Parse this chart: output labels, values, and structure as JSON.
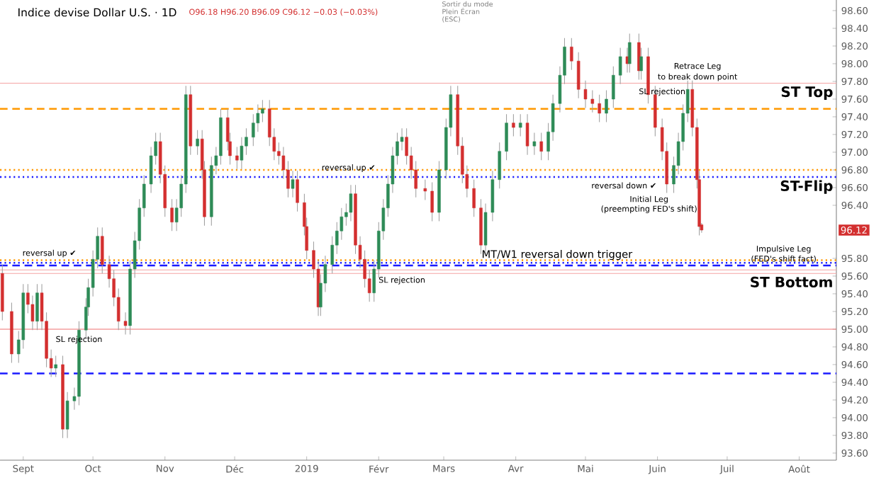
{
  "chart_data": {
    "type": "candlestick",
    "title": "Indice devise Dollar U.S. · 1D",
    "subtitle": "O96.18 H96.20 B96.09 C96.12 −0.03 (−0.03%)",
    "x": [
      "2018-08-23",
      "2018-08-27",
      "2018-08-30",
      "2018-09-01",
      "2018-09-03",
      "2018-09-05",
      "2018-09-07",
      "2018-09-09",
      "2018-09-11",
      "2018-09-13",
      "2018-09-15",
      "2018-09-18",
      "2018-09-20",
      "2018-09-23",
      "2018-09-25",
      "2018-09-28",
      "2018-09-29",
      "2018-10-01",
      "2018-10-03",
      "2018-10-05",
      "2018-10-08",
      "2018-10-10",
      "2018-10-12",
      "2018-10-15",
      "2018-10-17",
      "2018-10-19",
      "2018-10-21",
      "2018-10-23",
      "2018-10-26",
      "2018-10-28",
      "2018-10-30",
      "2018-11-01",
      "2018-11-04",
      "2018-11-06",
      "2018-11-08",
      "2018-11-10",
      "2018-11-12",
      "2018-11-15",
      "2018-11-17",
      "2018-11-18",
      "2018-11-21",
      "2018-11-23",
      "2018-11-25",
      "2018-11-28",
      "2018-11-29",
      "2018-12-02",
      "2018-12-04",
      "2018-12-06",
      "2018-12-09",
      "2018-12-11",
      "2018-12-13",
      "2018-12-16",
      "2018-12-18",
      "2018-12-20",
      "2018-12-22",
      "2018-12-24",
      "2018-12-26",
      "2018-12-28",
      "2018-12-31",
      "2019-01-01",
      "2019-01-04",
      "2019-01-06",
      "2019-01-07",
      "2019-01-09",
      "2019-01-12",
      "2019-01-14",
      "2019-01-16",
      "2019-01-18",
      "2019-01-20",
      "2019-01-22",
      "2019-01-24",
      "2019-01-26",
      "2019-01-28",
      "2019-01-30",
      "2019-02-01",
      "2019-02-03",
      "2019-02-05",
      "2019-02-07",
      "2019-02-09",
      "2019-02-11",
      "2019-02-13",
      "2019-02-15",
      "2019-02-17",
      "2019-02-21",
      "2019-02-24",
      "2019-02-27",
      "2019-03-02",
      "2019-03-04",
      "2019-03-07",
      "2019-03-09",
      "2019-03-11",
      "2019-03-14",
      "2019-03-17",
      "2019-03-19",
      "2019-03-22",
      "2019-03-25",
      "2019-03-28",
      "2019-03-31",
      "2019-04-03",
      "2019-04-06",
      "2019-04-09",
      "2019-04-12",
      "2019-04-15",
      "2019-04-17",
      "2019-04-20",
      "2019-04-22",
      "2019-04-25",
      "2019-04-28",
      "2019-05-01",
      "2019-05-04",
      "2019-05-07",
      "2019-05-10",
      "2019-05-13",
      "2019-05-16",
      "2019-05-19",
      "2019-05-20",
      "2019-05-24",
      "2019-05-25",
      "2019-05-28",
      "2019-05-31",
      "2019-06-03",
      "2019-06-05",
      "2019-06-08",
      "2019-06-10",
      "2019-06-12",
      "2019-06-14",
      "2019-06-16",
      "2019-06-18",
      "2019-06-19",
      "2019-06-20"
    ],
    "ohlc": [
      [
        95.63,
        95.73,
        95.1,
        95.2
      ],
      [
        95.2,
        95.3,
        94.62,
        94.72
      ],
      [
        94.72,
        94.98,
        94.62,
        94.88
      ],
      [
        94.88,
        95.51,
        94.78,
        95.41
      ],
      [
        95.41,
        95.51,
        95.18,
        95.28
      ],
      [
        95.28,
        95.38,
        94.99,
        95.09
      ],
      [
        95.09,
        95.51,
        94.99,
        95.41
      ],
      [
        95.41,
        95.51,
        94.99,
        95.09
      ],
      [
        95.09,
        95.19,
        94.57,
        94.67
      ],
      [
        94.67,
        94.77,
        94.46,
        94.56
      ],
      [
        94.56,
        94.7,
        94.46,
        94.6
      ],
      [
        94.6,
        94.7,
        93.77,
        93.87
      ],
      [
        93.87,
        94.29,
        93.77,
        94.19
      ],
      [
        94.19,
        94.34,
        94.09,
        94.24
      ],
      [
        94.24,
        95.09,
        94.14,
        94.99
      ],
      [
        94.99,
        95.35,
        94.89,
        95.25
      ],
      [
        95.25,
        95.57,
        95.15,
        95.47
      ],
      [
        95.47,
        95.89,
        95.37,
        95.79
      ],
      [
        95.79,
        96.15,
        95.69,
        96.05
      ],
      [
        96.05,
        96.15,
        95.63,
        95.73
      ],
      [
        95.73,
        95.83,
        95.47,
        95.57
      ],
      [
        95.57,
        95.67,
        95.26,
        95.36
      ],
      [
        95.36,
        95.46,
        94.99,
        95.09
      ],
      [
        95.09,
        95.19,
        94.94,
        95.04
      ],
      [
        95.04,
        95.78,
        94.94,
        95.68
      ],
      [
        95.68,
        96.1,
        95.58,
        96.0
      ],
      [
        96.0,
        96.47,
        95.9,
        96.37
      ],
      [
        96.37,
        96.74,
        96.27,
        96.64
      ],
      [
        96.64,
        97.06,
        96.54,
        96.96
      ],
      [
        96.96,
        97.22,
        96.86,
        97.12
      ],
      [
        97.12,
        97.22,
        96.65,
        96.75
      ],
      [
        96.75,
        96.85,
        96.27,
        96.37
      ],
      [
        96.37,
        96.47,
        96.11,
        96.21
      ],
      [
        96.21,
        96.47,
        96.11,
        96.37
      ],
      [
        96.37,
        96.74,
        96.27,
        96.64
      ],
      [
        96.64,
        97.75,
        96.54,
        97.65
      ],
      [
        97.65,
        97.75,
        96.97,
        97.07
      ],
      [
        97.07,
        97.25,
        96.97,
        97.15
      ],
      [
        97.15,
        97.25,
        96.7,
        96.8
      ],
      [
        96.8,
        96.9,
        96.17,
        96.27
      ],
      [
        96.27,
        96.95,
        96.17,
        96.85
      ],
      [
        96.85,
        97.06,
        96.75,
        96.96
      ],
      [
        96.96,
        97.49,
        96.86,
        97.39
      ],
      [
        97.39,
        97.49,
        97.02,
        97.12
      ],
      [
        97.12,
        97.22,
        96.86,
        96.96
      ],
      [
        96.96,
        97.06,
        96.81,
        96.91
      ],
      [
        96.91,
        97.17,
        96.81,
        97.07
      ],
      [
        97.07,
        97.27,
        96.97,
        97.17
      ],
      [
        97.17,
        97.43,
        97.07,
        97.33
      ],
      [
        97.33,
        97.54,
        97.23,
        97.44
      ],
      [
        97.44,
        97.59,
        97.34,
        97.49
      ],
      [
        97.49,
        97.59,
        97.07,
        97.17
      ],
      [
        97.17,
        97.27,
        96.91,
        97.01
      ],
      [
        97.01,
        97.11,
        96.86,
        96.96
      ],
      [
        96.96,
        97.06,
        96.7,
        96.8
      ],
      [
        96.8,
        96.9,
        96.49,
        96.59
      ],
      [
        96.59,
        96.79,
        96.49,
        96.69
      ],
      [
        96.69,
        96.79,
        96.33,
        96.43
      ],
      [
        96.43,
        96.53,
        96.06,
        96.16
      ],
      [
        96.16,
        96.26,
        95.79,
        95.89
      ],
      [
        95.89,
        95.99,
        95.58,
        95.68
      ],
      [
        95.68,
        95.78,
        95.15,
        95.25
      ],
      [
        95.25,
        95.62,
        95.15,
        95.52
      ],
      [
        95.52,
        95.83,
        95.42,
        95.73
      ],
      [
        95.73,
        96.05,
        95.63,
        95.95
      ],
      [
        95.95,
        96.21,
        95.85,
        96.11
      ],
      [
        96.11,
        96.37,
        96.01,
        96.27
      ],
      [
        96.27,
        96.42,
        96.17,
        96.32
      ],
      [
        96.32,
        96.63,
        96.22,
        96.53
      ],
      [
        96.53,
        96.63,
        95.85,
        95.95
      ],
      [
        95.95,
        96.05,
        95.69,
        95.79
      ],
      [
        95.79,
        95.89,
        95.47,
        95.57
      ],
      [
        95.57,
        95.67,
        95.31,
        95.41
      ],
      [
        95.41,
        95.78,
        95.31,
        95.68
      ],
      [
        95.68,
        96.21,
        95.58,
        96.11
      ],
      [
        96.11,
        96.47,
        96.01,
        96.37
      ],
      [
        96.37,
        96.74,
        96.27,
        96.64
      ],
      [
        96.64,
        97.06,
        96.54,
        96.96
      ],
      [
        96.96,
        97.22,
        96.86,
        97.12
      ],
      [
        97.12,
        97.27,
        97.02,
        97.17
      ],
      [
        97.17,
        97.27,
        96.86,
        96.96
      ],
      [
        96.96,
        97.06,
        96.7,
        96.8
      ],
      [
        96.8,
        96.9,
        96.49,
        96.59
      ],
      [
        96.59,
        96.69,
        96.46,
        96.56
      ],
      [
        96.56,
        96.66,
        96.22,
        96.32
      ],
      [
        96.32,
        96.9,
        96.22,
        96.8
      ],
      [
        96.8,
        97.38,
        96.7,
        97.28
      ],
      [
        97.28,
        97.75,
        97.18,
        97.65
      ],
      [
        97.65,
        97.75,
        96.97,
        97.07
      ],
      [
        97.07,
        97.17,
        96.65,
        96.75
      ],
      [
        96.75,
        96.85,
        96.49,
        96.59
      ],
      [
        96.59,
        96.69,
        96.27,
        96.37
      ],
      [
        96.37,
        96.47,
        95.85,
        95.95
      ],
      [
        95.95,
        96.42,
        95.85,
        96.32
      ],
      [
        96.32,
        96.79,
        96.22,
        96.69
      ],
      [
        96.69,
        97.11,
        96.59,
        97.01
      ],
      [
        97.01,
        97.43,
        96.91,
        97.33
      ],
      [
        97.33,
        97.43,
        97.18,
        97.28
      ],
      [
        97.28,
        97.43,
        97.18,
        97.33
      ],
      [
        97.33,
        97.43,
        96.97,
        97.07
      ],
      [
        97.07,
        97.22,
        96.97,
        97.12
      ],
      [
        97.12,
        97.22,
        96.91,
        97.01
      ],
      [
        97.01,
        97.33,
        96.91,
        97.23
      ],
      [
        97.23,
        97.65,
        97.13,
        97.55
      ],
      [
        97.55,
        97.97,
        97.45,
        97.87
      ],
      [
        97.87,
        98.29,
        97.77,
        98.19
      ],
      [
        98.19,
        98.29,
        97.93,
        98.03
      ],
      [
        98.03,
        98.13,
        97.61,
        97.71
      ],
      [
        97.71,
        97.81,
        97.5,
        97.6
      ],
      [
        97.6,
        97.7,
        97.45,
        97.55
      ],
      [
        97.55,
        97.65,
        97.34,
        97.44
      ],
      [
        97.44,
        97.7,
        97.34,
        97.6
      ],
      [
        97.6,
        97.97,
        97.5,
        97.87
      ],
      [
        97.87,
        98.18,
        97.77,
        98.08
      ],
      [
        98.08,
        98.18,
        97.9,
        98.0
      ],
      [
        98.0,
        98.34,
        97.9,
        98.24
      ],
      [
        98.24,
        98.34,
        97.82,
        97.92
      ],
      [
        97.92,
        98.18,
        97.82,
        98.08
      ],
      [
        98.08,
        98.18,
        97.55,
        97.65
      ],
      [
        97.65,
        97.75,
        97.18,
        97.28
      ],
      [
        97.28,
        97.38,
        96.91,
        97.01
      ],
      [
        97.01,
        97.11,
        96.54,
        96.64
      ],
      [
        96.64,
        96.95,
        96.54,
        96.85
      ],
      [
        96.85,
        97.22,
        96.75,
        97.12
      ],
      [
        97.12,
        97.54,
        97.02,
        97.44
      ],
      [
        97.44,
        97.81,
        97.34,
        97.71
      ],
      [
        97.71,
        97.81,
        97.18,
        97.28
      ],
      [
        97.28,
        97.38,
        96.59,
        96.69
      ],
      [
        96.69,
        96.79,
        96.06,
        96.16
      ],
      [
        96.18,
        96.2,
        96.09,
        96.12
      ]
    ],
    "xlim": [
      "2018-08-22",
      "2019-08-17"
    ],
    "xticks": [
      {
        "value": "2018-09-01",
        "label": "Sept"
      },
      {
        "value": "2018-10-01",
        "label": "Oct"
      },
      {
        "value": "2018-11-01",
        "label": "Nov"
      },
      {
        "value": "2018-12-01",
        "label": "Déc"
      },
      {
        "value": "2019-01-01",
        "label": "2019"
      },
      {
        "value": "2019-02-01",
        "label": "Févr"
      },
      {
        "value": "2019-03-01",
        "label": "Mars"
      },
      {
        "value": "2019-04-01",
        "label": "Avr"
      },
      {
        "value": "2019-05-01",
        "label": "Mai"
      },
      {
        "value": "2019-06-01",
        "label": "Juin"
      },
      {
        "value": "2019-07-01",
        "label": "Juil"
      },
      {
        "value": "2019-08-01",
        "label": "Août"
      }
    ],
    "ylim": [
      93.52,
      98.72
    ],
    "yticks": [
      {
        "value": 93.6,
        "label": "93.60"
      },
      {
        "value": 93.8,
        "label": "93.80"
      },
      {
        "value": 94,
        "label": "94.00"
      },
      {
        "value": 94.2,
        "label": "94.20"
      },
      {
        "value": 94.4,
        "label": "94.40"
      },
      {
        "value": 94.6,
        "label": "94.60"
      },
      {
        "value": 94.8,
        "label": "94.80"
      },
      {
        "value": 95,
        "label": "95.00"
      },
      {
        "value": 95.2,
        "label": "95.20"
      },
      {
        "value": 95.4,
        "label": "95.40"
      },
      {
        "value": 95.6,
        "label": "95.60"
      },
      {
        "value": 95.8,
        "label": "95.80"
      },
      {
        "value": 96.4,
        "label": "96.40"
      },
      {
        "value": 96.6,
        "label": "96.60"
      },
      {
        "value": 96.8,
        "label": "96.80"
      },
      {
        "value": 97,
        "label": "97.00"
      },
      {
        "value": 97.2,
        "label": "97.20"
      },
      {
        "value": 97.4,
        "label": "97.40"
      },
      {
        "value": 97.6,
        "label": "97.60"
      },
      {
        "value": 97.8,
        "label": "97.80"
      },
      {
        "value": 98,
        "label": "98.00"
      },
      {
        "value": 98.2,
        "label": "98.20"
      },
      {
        "value": 98.4,
        "label": "98.40"
      },
      {
        "value": 98.6,
        "label": "98.60"
      }
    ],
    "ref_lines": [
      {
        "axis": "y",
        "value": 97.78,
        "color": "#f4a3a3",
        "line_style": "solid",
        "label": "ST Top"
      },
      {
        "axis": "y",
        "value": 97.49,
        "color": "#ff9800",
        "line_style": "dashed"
      },
      {
        "axis": "y",
        "value": 96.8,
        "color": "#ff9800",
        "line_style": "dotted"
      },
      {
        "axis": "y",
        "value": 96.72,
        "color": "#1a1aff",
        "line_style": "dotted",
        "label": "ST-Flip"
      },
      {
        "axis": "y",
        "value": 95.78,
        "color": "#ff9800",
        "line_style": "dotted"
      },
      {
        "axis": "y",
        "value": 95.75,
        "color": "#1a1aff",
        "line_style": "dotted"
      },
      {
        "axis": "y",
        "value": 95.72,
        "color": "#1a1aff",
        "line_style": "dashed"
      },
      {
        "axis": "y",
        "value": 95.67,
        "color": "#f4a3a3",
        "line_style": "solid"
      },
      {
        "axis": "y",
        "value": 95.63,
        "color": "#f4a3a3",
        "line_style": "solid",
        "label": "ST Bottom"
      },
      {
        "axis": "y",
        "value": 95.0,
        "color": "#f07070",
        "line_style": "solid"
      },
      {
        "axis": "y",
        "value": 94.5,
        "color": "#1a1aff",
        "line_style": "dashed"
      }
    ],
    "annotations": [
      "Sortir du mode Plein Écran (ESC)",
      "reversal up ✔",
      {
        "text": "reversal up ✔",
        "x": "2019-01-19",
        "y": 96.82
      },
      {
        "text": "SL rejection",
        "x": "2018-09-25",
        "y": 94.88
      },
      {
        "text": "SL rejection",
        "x": "2019-02-11",
        "y": 95.55
      },
      {
        "text": "SL rejection",
        "x": "2019-06-03",
        "y": 97.68
      },
      "reversal down ✔",
      "Initial Leg",
      "(preempting FED's shift)",
      "Retrace Leg",
      "to break down point",
      "Impulsive Leg",
      "(FED's shift fact)",
      "MT/W1 reversal down trigger",
      {
        "text": "96.12",
        "y": 96.12
      }
    ]
  }
}
